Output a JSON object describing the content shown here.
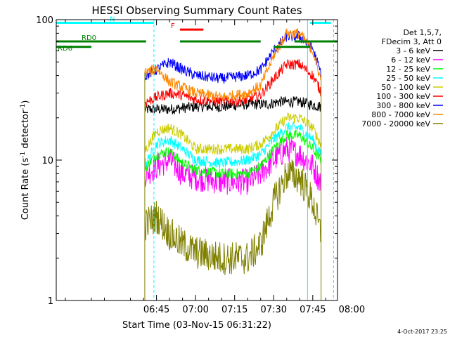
{
  "chart_data": {
    "type": "line",
    "title": "HESSI Observing Summary Count Rates",
    "xlabel": "Start Time (03-Nov-15 06:31:22)",
    "ylabel": "Count Rate (s⁻¹ detector⁻¹)",
    "ylabel_parts": {
      "main": "Count Rate (s",
      "exp1": "-1",
      "mid": " detector",
      "exp2": "-1",
      "end": ")"
    },
    "yscale": "log",
    "ylim": [
      1,
      100
    ],
    "xlim_minutes": [
      6.5,
      114.5
    ],
    "x_ticks": [
      {
        "label": "06:45",
        "minute": 45
      },
      {
        "label": "07:00",
        "minute": 60
      },
      {
        "label": "07:15",
        "minute": 75
      },
      {
        "label": "07:30",
        "minute": 90
      },
      {
        "label": "07:45",
        "minute": 105
      },
      {
        "label": "08:00",
        "minute": 120
      }
    ],
    "y_ticks": [
      {
        "label": "1",
        "value": 1
      },
      {
        "label": "10",
        "value": 10
      },
      {
        "label": "100",
        "value": 100
      }
    ],
    "legend_header": [
      "Det 1,5,7,",
      "FDecim 3, Att 0"
    ],
    "legend_position": "right",
    "data_window_minutes": [
      40.5,
      108.2
    ],
    "series": [
      {
        "name": "3 - 6 keV",
        "color": "#000000",
        "points": [
          [
            41,
            23
          ],
          [
            50,
            23
          ],
          [
            60,
            24
          ],
          [
            70,
            24
          ],
          [
            80,
            25
          ],
          [
            88,
            25
          ],
          [
            92,
            26
          ],
          [
            100,
            26
          ],
          [
            108,
            24
          ]
        ]
      },
      {
        "name": "6 - 12 keV",
        "color": "#ff00ff",
        "points": [
          [
            41,
            8
          ],
          [
            45,
            9
          ],
          [
            50,
            10
          ],
          [
            55,
            8
          ],
          [
            60,
            7.5
          ],
          [
            70,
            7
          ],
          [
            80,
            7
          ],
          [
            85,
            8
          ],
          [
            90,
            10
          ],
          [
            95,
            12
          ],
          [
            100,
            11
          ],
          [
            105,
            9
          ],
          [
            108,
            7
          ]
        ]
      },
      {
        "name": "12 - 25 keV",
        "color": "#00ff00",
        "points": [
          [
            41,
            9
          ],
          [
            45,
            11
          ],
          [
            50,
            11.5
          ],
          [
            55,
            9.5
          ],
          [
            60,
            8.5
          ],
          [
            70,
            8
          ],
          [
            80,
            8
          ],
          [
            85,
            9
          ],
          [
            90,
            12
          ],
          [
            95,
            15
          ],
          [
            100,
            15
          ],
          [
            105,
            12
          ],
          [
            108,
            10
          ]
        ]
      },
      {
        "name": "25 - 50 keV",
        "color": "#00ffff",
        "points": [
          [
            41,
            9.5
          ],
          [
            45,
            13
          ],
          [
            50,
            14
          ],
          [
            55,
            12
          ],
          [
            60,
            10
          ],
          [
            70,
            9.5
          ],
          [
            80,
            10
          ],
          [
            85,
            11
          ],
          [
            90,
            14
          ],
          [
            95,
            17
          ],
          [
            100,
            17
          ],
          [
            105,
            14
          ],
          [
            108,
            11
          ]
        ]
      },
      {
        "name": "50 - 100 keV",
        "color": "#cccc00",
        "points": [
          [
            41,
            12
          ],
          [
            45,
            16
          ],
          [
            50,
            17
          ],
          [
            55,
            15
          ],
          [
            60,
            12
          ],
          [
            70,
            12
          ],
          [
            80,
            12
          ],
          [
            85,
            13
          ],
          [
            90,
            16
          ],
          [
            95,
            20
          ],
          [
            100,
            20
          ],
          [
            105,
            17
          ],
          [
            108,
            13
          ]
        ]
      },
      {
        "name": "100 - 300 keV",
        "color": "#ff0000",
        "points": [
          [
            41,
            26
          ],
          [
            45,
            28
          ],
          [
            50,
            30
          ],
          [
            55,
            29
          ],
          [
            60,
            27
          ],
          [
            70,
            26
          ],
          [
            80,
            27
          ],
          [
            85,
            29
          ],
          [
            90,
            38
          ],
          [
            95,
            48
          ],
          [
            100,
            48
          ],
          [
            105,
            40
          ],
          [
            108,
            31
          ]
        ]
      },
      {
        "name": "300 - 800 keV",
        "color": "#0000ff",
        "points": [
          [
            41,
            40
          ],
          [
            45,
            44
          ],
          [
            50,
            50
          ],
          [
            55,
            44
          ],
          [
            60,
            40
          ],
          [
            70,
            38
          ],
          [
            80,
            40
          ],
          [
            85,
            44
          ],
          [
            90,
            60
          ],
          [
            95,
            76
          ],
          [
            100,
            76
          ],
          [
            105,
            62
          ],
          [
            108,
            42
          ]
        ]
      },
      {
        "name": "800 - 7000 keV",
        "color": "#ff8800",
        "points": [
          [
            41,
            42
          ],
          [
            45,
            45
          ],
          [
            50,
            36
          ],
          [
            55,
            33
          ],
          [
            60,
            30
          ],
          [
            70,
            28
          ],
          [
            80,
            30
          ],
          [
            85,
            34
          ],
          [
            90,
            55
          ],
          [
            95,
            80
          ],
          [
            100,
            80
          ],
          [
            105,
            60
          ],
          [
            108,
            38
          ]
        ]
      },
      {
        "name": "7000 - 20000 keV",
        "color": "#808000",
        "points": [
          [
            41,
            3.5
          ],
          [
            45,
            4
          ],
          [
            50,
            3
          ],
          [
            55,
            2.5
          ],
          [
            60,
            2.2
          ],
          [
            70,
            2
          ],
          [
            80,
            2
          ],
          [
            85,
            2.5
          ],
          [
            90,
            5
          ],
          [
            95,
            8
          ],
          [
            100,
            7.5
          ],
          [
            105,
            5
          ],
          [
            108,
            3
          ]
        ]
      }
    ],
    "flag_bars": [
      {
        "label": "N",
        "color": "#00ffff",
        "y": 95,
        "segments": [
          [
            6.5,
            44
          ],
          [
            104,
            112
          ]
        ]
      },
      {
        "label": "F",
        "color": "#ff0000",
        "y": 85,
        "segments": [
          [
            54,
            63
          ]
        ]
      },
      {
        "label": "RD0",
        "color": "#008000",
        "y": 70,
        "segments": [
          [
            6.5,
            41
          ],
          [
            54,
            85
          ],
          [
            98,
            114.5
          ]
        ]
      },
      {
        "label": "RD6",
        "color": "#008000",
        "y": 64,
        "segments": [
          [
            6.5,
            20
          ],
          [
            90,
            104
          ]
        ]
      }
    ],
    "vertical_lines": [
      {
        "minute": 44,
        "style": "dashed",
        "color": "#00ffff"
      },
      {
        "minute": 103,
        "style": "solid",
        "color": "#00ffff"
      },
      {
        "minute": 113,
        "style": "dashed",
        "color": "#00ffff"
      }
    ]
  },
  "footer": {
    "timestamp": "4-Oct-2017 23:25"
  }
}
